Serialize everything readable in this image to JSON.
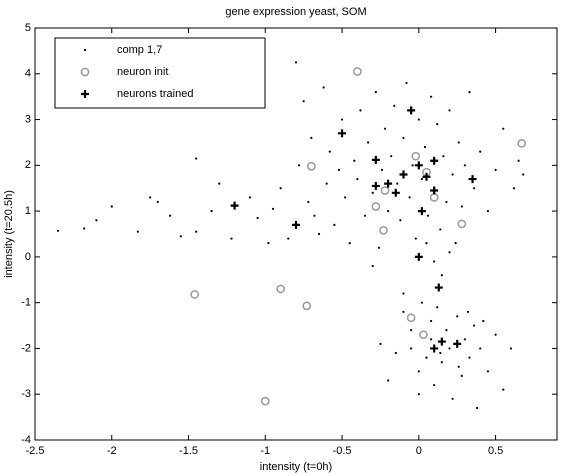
{
  "chart_data": {
    "type": "scatter",
    "title": "gene expression yeast, SOM",
    "x_label": "intensity (t=0h)",
    "y_label": "intensity (t=20.5h)",
    "xlim": [
      -2.5,
      0.9
    ],
    "ylim": [
      -4,
      5
    ],
    "xticks": [
      -2.5,
      -2,
      -1.5,
      -1,
      -0.5,
      0,
      0.5
    ],
    "yticks": [
      -4,
      -3,
      -2,
      -1,
      0,
      1,
      2,
      3,
      4,
      5
    ],
    "legend": "upper left",
    "series": [
      {
        "name": "comp 1,7",
        "marker": "dot",
        "color": "#000000",
        "x": [
          -2.35,
          -2.18,
          -2.1,
          -2.0,
          -1.83,
          -1.75,
          -1.7,
          -1.62,
          -1.55,
          -1.45,
          -1.45,
          -1.35,
          -1.3,
          -1.22,
          -1.1,
          -1.05,
          -0.98,
          -0.95,
          -0.9,
          -0.85,
          -0.8,
          -0.78,
          -0.75,
          -0.72,
          -0.7,
          -0.68,
          -0.65,
          -0.62,
          -0.6,
          -0.58,
          -0.55,
          -0.52,
          -0.5,
          -0.48,
          -0.45,
          -0.42,
          -0.4,
          -0.38,
          -0.35,
          -0.33,
          -0.3,
          -0.28,
          -0.26,
          -0.24,
          -0.22,
          -0.2,
          -0.18,
          -0.16,
          -0.14,
          -0.12,
          -0.1,
          -0.08,
          -0.06,
          -0.04,
          -0.02,
          0.0,
          0.02,
          0.04,
          0.06,
          0.08,
          0.1,
          0.12,
          0.14,
          0.16,
          0.18,
          0.2,
          0.22,
          0.24,
          0.26,
          0.28,
          0.3,
          0.33,
          0.36,
          0.4,
          0.45,
          0.5,
          0.55,
          0.62,
          0.68,
          0.65,
          0.05,
          0.1,
          0.15,
          0.2,
          -0.3,
          -0.1,
          -0.05,
          0.0,
          0.02,
          0.05,
          0.08,
          0.1,
          0.12,
          0.15,
          0.18,
          0.2,
          0.22,
          0.25,
          0.28,
          0.3,
          0.33,
          0.36,
          0.4,
          0.45,
          0.5,
          0.55,
          0.6,
          -0.15,
          -0.2,
          -0.25,
          -0.1,
          0.0,
          0.08,
          0.14,
          0.26,
          0.32,
          -0.05,
          0.38,
          0.42
        ],
        "y": [
          0.57,
          0.62,
          0.8,
          1.1,
          0.55,
          1.3,
          1.2,
          0.9,
          0.45,
          2.15,
          0.55,
          1.0,
          1.6,
          0.4,
          1.3,
          0.85,
          0.3,
          1.05,
          1.5,
          0.4,
          4.25,
          2.0,
          3.4,
          1.2,
          2.6,
          0.9,
          0.5,
          3.7,
          1.6,
          2.3,
          0.7,
          1.9,
          3.0,
          1.3,
          0.3,
          2.1,
          1.7,
          3.2,
          0.9,
          2.5,
          1.4,
          3.6,
          0.2,
          1.9,
          2.8,
          1.0,
          2.2,
          3.3,
          1.6,
          0.8,
          2.6,
          3.8,
          1.3,
          2.0,
          0.4,
          3.0,
          1.7,
          2.4,
          0.9,
          3.5,
          1.5,
          2.9,
          0.6,
          2.2,
          1.2,
          3.2,
          1.8,
          0.3,
          2.5,
          1.1,
          2.0,
          3.6,
          1.5,
          2.3,
          1.0,
          1.9,
          2.8,
          1.5,
          1.8,
          2.1,
          0.3,
          -0.1,
          -0.4,
          0.1,
          -0.2,
          -1.2,
          -1.6,
          -2.5,
          -1.0,
          -2.2,
          -1.4,
          -2.8,
          -1.1,
          -2.3,
          -1.6,
          -2.0,
          -3.1,
          -1.3,
          -2.6,
          -1.8,
          -2.2,
          -1.5,
          -2.0,
          -2.5,
          -1.7,
          -2.9,
          -2.0,
          -2.1,
          -2.7,
          -1.9,
          -0.8,
          -3.0,
          -1.8,
          -2.1,
          -2.4,
          -1.2,
          -2.0,
          -3.3,
          -1.4
        ]
      },
      {
        "name": "neuron init",
        "marker": "circle",
        "color": "#999999",
        "x": [
          -0.4,
          0.67,
          -0.7,
          -0.28,
          -0.22,
          -0.23,
          0.28,
          -0.02,
          0.05,
          0.1,
          -1.46,
          -0.9,
          -0.73,
          -0.05,
          0.03,
          -1.0
        ],
        "y": [
          4.05,
          2.48,
          1.98,
          1.1,
          1.45,
          0.58,
          0.72,
          2.2,
          1.85,
          1.3,
          -0.82,
          -0.7,
          -1.07,
          -1.33,
          -1.7,
          -3.15
        ]
      },
      {
        "name": "neurons trained",
        "marker": "plus",
        "color": "#000000",
        "x": [
          -1.2,
          -0.8,
          -0.5,
          -0.28,
          -0.15,
          -0.28,
          -0.05,
          0.0,
          0.05,
          0.1,
          0.35,
          0.02,
          0.0,
          0.13,
          0.1,
          0.15,
          0.25,
          0.1,
          -0.1,
          -0.2
        ],
        "y": [
          1.12,
          0.7,
          2.7,
          1.55,
          1.4,
          2.12,
          3.2,
          2.0,
          1.75,
          2.1,
          1.7,
          1.0,
          0.0,
          -0.67,
          -2.0,
          -1.85,
          -1.9,
          1.45,
          1.8,
          1.6
        ]
      }
    ]
  }
}
